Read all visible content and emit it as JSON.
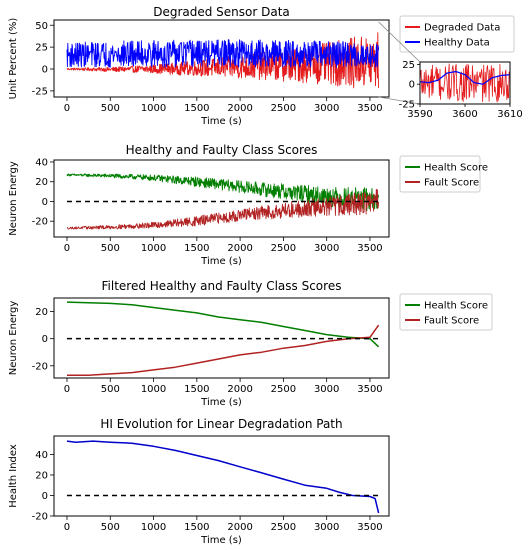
{
  "chart_data": [
    {
      "id": "degraded",
      "type": "line",
      "title": "Degraded Sensor Data",
      "xlabel": "Time (s)",
      "ylabel": "Unit Percent (%)",
      "xlim": [
        -150,
        3720
      ],
      "ylim": [
        -32,
        56
      ],
      "xticks": [
        0,
        500,
        1000,
        1500,
        2000,
        2500,
        3000,
        3500
      ],
      "yticks": [
        -25,
        0,
        25,
        50
      ],
      "legend": "right-outside",
      "series": [
        {
          "name": "Degraded Data",
          "color": "#e41a1c",
          "kind": "noise",
          "x": [
            0,
            500,
            1000,
            1500,
            2000,
            2500,
            3000,
            3500,
            3600
          ],
          "upper": [
            1,
            2,
            5,
            10,
            16,
            22,
            30,
            40,
            45
          ],
          "lower": [
            -1,
            -3,
            -5,
            -8,
            -11,
            -14,
            -18,
            -24,
            -26
          ]
        },
        {
          "name": "Healthy Data",
          "color": "#0000ff",
          "kind": "noise",
          "x": [
            0,
            500,
            1000,
            1500,
            2000,
            2500,
            3000,
            3500,
            3600
          ],
          "upper": [
            30,
            32,
            33,
            33,
            34,
            33,
            32,
            30,
            28
          ],
          "lower": [
            2,
            2,
            2,
            2,
            2,
            2,
            2,
            2,
            2
          ]
        }
      ],
      "inset": {
        "xlim": [
          3590,
          3610
        ],
        "ylim": [
          -25,
          28
        ],
        "xticks": [
          3590,
          3600,
          3610
        ],
        "yticks": [
          -25,
          0,
          25
        ],
        "healthy_x": [
          3590,
          3592,
          3594,
          3596,
          3598,
          3600,
          3602,
          3604,
          3606,
          3608,
          3610
        ],
        "healthy_y": [
          3,
          2,
          5,
          14,
          16,
          12,
          2,
          0,
          8,
          11,
          12
        ]
      }
    },
    {
      "id": "scores",
      "type": "line",
      "title": "Healthy and Faulty Class Scores",
      "xlabel": "Time (s)",
      "ylabel": "Neuron Energy",
      "xlim": [
        -150,
        3720
      ],
      "ylim": [
        -36,
        42
      ],
      "xticks": [
        0,
        500,
        1000,
        1500,
        2000,
        2500,
        3000,
        3500
      ],
      "yticks": [
        -20,
        0,
        20,
        40
      ],
      "legend": "right-outside",
      "reference_line": 0,
      "series": [
        {
          "name": "Health Score",
          "color": "#007f00",
          "kind": "noise",
          "x": [
            0,
            500,
            1000,
            1500,
            2000,
            2500,
            3000,
            3500,
            3600
          ],
          "center": [
            27,
            26,
            24,
            20,
            15,
            10,
            5,
            2,
            1
          ],
          "spread": [
            1,
            2,
            3,
            5,
            6,
            8,
            10,
            12,
            12
          ]
        },
        {
          "name": "Fault Score",
          "color": "#b22222",
          "kind": "noise",
          "x": [
            0,
            500,
            1000,
            1500,
            2000,
            2500,
            3000,
            3500,
            3600
          ],
          "center": [
            -27,
            -26,
            -24,
            -20,
            -14,
            -9,
            -5,
            -1,
            1
          ],
          "spread": [
            1,
            2,
            3,
            5,
            6,
            8,
            10,
            12,
            12
          ]
        }
      ]
    },
    {
      "id": "filtered",
      "type": "line",
      "title": "Filtered Healthy and Faulty Class Scores",
      "xlabel": "Time (s)",
      "ylabel": "Neuron Energy",
      "xlim": [
        -150,
        3720
      ],
      "ylim": [
        -29,
        30
      ],
      "xticks": [
        0,
        500,
        1000,
        1500,
        2000,
        2500,
        3000,
        3500
      ],
      "yticks": [
        -20,
        0,
        20
      ],
      "legend": "right-outside",
      "reference_line": 0,
      "series": [
        {
          "name": "Health Score",
          "color": "#007f00",
          "x": [
            0,
            250,
            500,
            750,
            1000,
            1250,
            1500,
            1750,
            2000,
            2250,
            2500,
            2750,
            3000,
            3250,
            3500,
            3600
          ],
          "y": [
            27,
            26.5,
            26,
            25,
            23,
            21,
            19,
            16,
            14,
            12,
            9,
            6,
            3,
            1,
            0,
            -6
          ]
        },
        {
          "name": "Fault Score",
          "color": "#b22222",
          "x": [
            0,
            250,
            500,
            750,
            1000,
            1250,
            1500,
            1750,
            2000,
            2250,
            2500,
            2750,
            3000,
            3250,
            3500,
            3600
          ],
          "y": [
            -27,
            -27,
            -26,
            -25,
            -23,
            -21,
            -18,
            -15,
            -12,
            -10,
            -7,
            -5,
            -2,
            0,
            1,
            10
          ]
        }
      ]
    },
    {
      "id": "hi",
      "type": "line",
      "title": "HI Evolution for Linear Degradation Path",
      "xlabel": "Time (s)",
      "ylabel": "Health Index",
      "xlim": [
        -150,
        3720
      ],
      "ylim": [
        -20,
        58
      ],
      "xticks": [
        0,
        500,
        1000,
        1500,
        2000,
        2500,
        3000,
        3500
      ],
      "yticks": [
        -20,
        0,
        20,
        40
      ],
      "legend": "none",
      "reference_line": 0,
      "series": [
        {
          "name": "",
          "color": "#0000cd",
          "x": [
            0,
            100,
            300,
            500,
            750,
            1000,
            1250,
            1500,
            1750,
            2000,
            2250,
            2500,
            2750,
            3000,
            3150,
            3300,
            3500,
            3560,
            3600
          ],
          "y": [
            53,
            52,
            53,
            52,
            51,
            48,
            44,
            39,
            34,
            28,
            22,
            16,
            10,
            7,
            3,
            0,
            -1,
            -3,
            -17
          ]
        }
      ]
    }
  ]
}
